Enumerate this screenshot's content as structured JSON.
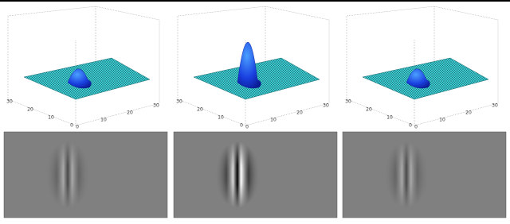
{
  "panels": [
    {
      "x_ticks": [
        "0",
        "10",
        "20",
        "30"
      ],
      "y_ticks": [
        "30",
        "20",
        "10",
        "0"
      ]
    },
    {
      "x_ticks": [
        "0",
        "10",
        "20",
        "30"
      ],
      "y_ticks": [
        "30",
        "20",
        "10",
        "0"
      ]
    },
    {
      "x_ticks": [
        "0",
        "10",
        "20",
        "30"
      ],
      "y_ticks": [
        "30",
        "20",
        "10",
        "0"
      ]
    }
  ]
}
